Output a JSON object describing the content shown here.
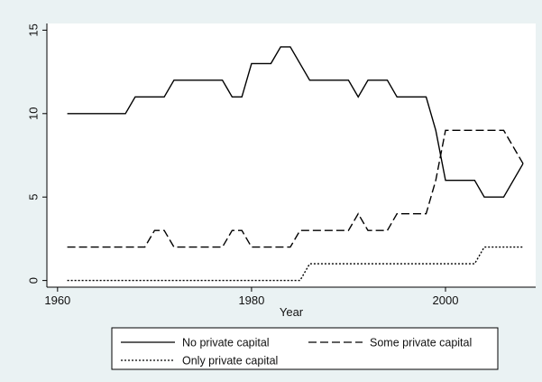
{
  "chart_data": {
    "type": "line",
    "title": "",
    "xlabel": "Year",
    "ylabel": "",
    "xlim": [
      1960,
      2009
    ],
    "ylim": [
      0,
      15
    ],
    "xticks": [
      1960,
      1980,
      2000
    ],
    "yticks": [
      0,
      5,
      10,
      15
    ],
    "grid": false,
    "legend_position": "bottom",
    "colors": {
      "background": "#eaf2f3",
      "plot": "#ffffff",
      "line": "#000000"
    },
    "series": [
      {
        "name": "No private capital",
        "dash": "solid",
        "points": [
          [
            1961,
            10
          ],
          [
            1967,
            10
          ],
          [
            1968,
            11
          ],
          [
            1971,
            11
          ],
          [
            1972,
            12
          ],
          [
            1977,
            12
          ],
          [
            1978,
            11
          ],
          [
            1979,
            11
          ],
          [
            1980,
            13
          ],
          [
            1982,
            13
          ],
          [
            1983,
            14
          ],
          [
            1984,
            14
          ],
          [
            1986,
            12
          ],
          [
            1990,
            12
          ],
          [
            1991,
            11
          ],
          [
            1992,
            12
          ],
          [
            1994,
            12
          ],
          [
            1995,
            11
          ],
          [
            1998,
            11
          ],
          [
            1999,
            9
          ],
          [
            2000,
            6
          ],
          [
            2003,
            6
          ],
          [
            2004,
            5
          ],
          [
            2006,
            5
          ],
          [
            2008,
            7
          ]
        ]
      },
      {
        "name": "Some private capital",
        "dash": "long-dash",
        "points": [
          [
            1961,
            2
          ],
          [
            1969,
            2
          ],
          [
            1970,
            3
          ],
          [
            1971,
            3
          ],
          [
            1972,
            2
          ],
          [
            1977,
            2
          ],
          [
            1978,
            3
          ],
          [
            1979,
            3
          ],
          [
            1980,
            2
          ],
          [
            1983,
            2
          ],
          [
            1984,
            2
          ],
          [
            1985,
            3
          ],
          [
            1990,
            3
          ],
          [
            1991,
            4
          ],
          [
            1992,
            3
          ],
          [
            1994,
            3
          ],
          [
            1995,
            4
          ],
          [
            1998,
            4
          ],
          [
            1999,
            6
          ],
          [
            2000,
            9
          ],
          [
            2006,
            9
          ],
          [
            2008,
            7
          ]
        ]
      },
      {
        "name": "Only private capital",
        "dash": "short-dash",
        "points": [
          [
            1961,
            0
          ],
          [
            1985,
            0
          ],
          [
            1986,
            1
          ],
          [
            2003,
            1
          ],
          [
            2004,
            2
          ],
          [
            2008,
            2
          ]
        ]
      }
    ]
  }
}
